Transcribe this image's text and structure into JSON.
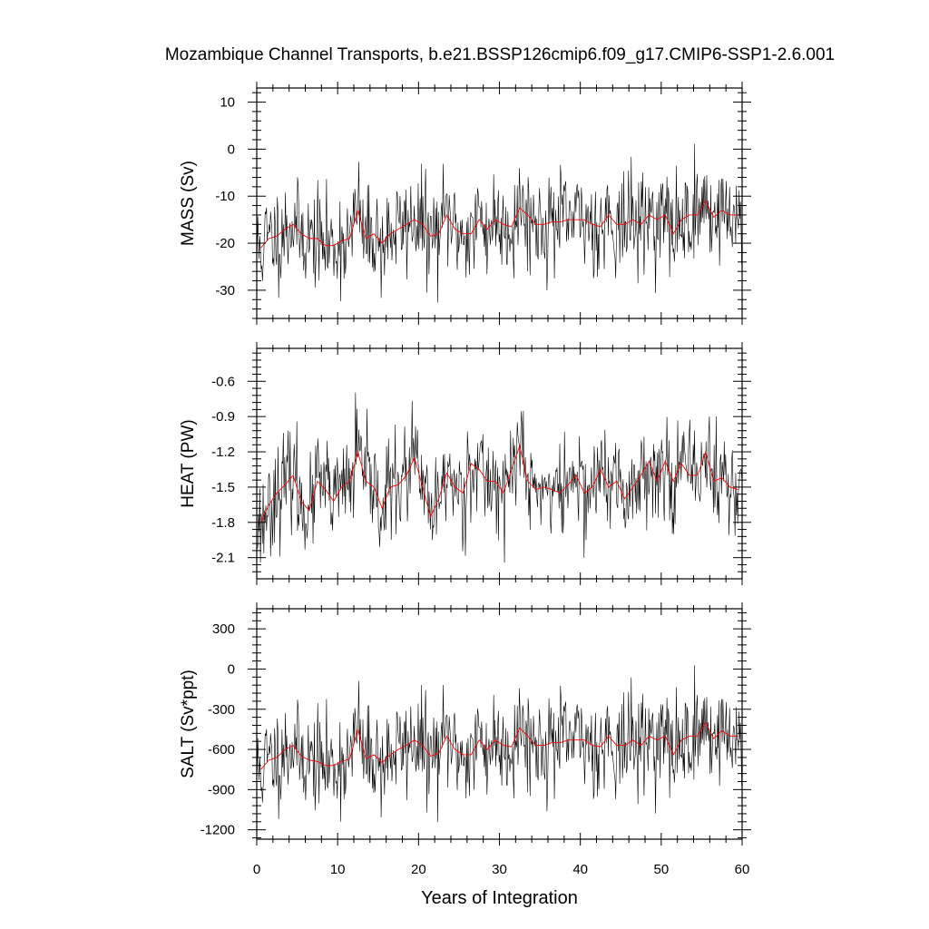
{
  "title": "Mozambique Channel Transports, b.e21.BSSP126cmip6.f09_g17.CMIP6-SSP1-2.6.001",
  "colors": {
    "monthly": "#000000",
    "annual": "#ff0000",
    "frame": "#000000"
  },
  "chart_data": [
    {
      "type": "line",
      "panel": "mass",
      "ylabel": "MASS (Sv)",
      "xlabel": "",
      "xlim": [
        0,
        60
      ],
      "ylim": [
        -36,
        13
      ],
      "yticks": [
        10,
        0,
        -10,
        -20,
        -30
      ],
      "ytick_labels": [
        "10",
        "0",
        "-10",
        "-20",
        "-30"
      ],
      "annual_x": [
        0.5,
        1.5,
        2.5,
        3.5,
        4.5,
        5.5,
        6.5,
        7.5,
        8.5,
        9.5,
        10.5,
        11.5,
        12.5,
        13.5,
        14.5,
        15.5,
        16.5,
        17.5,
        18.5,
        19.5,
        20.5,
        21.5,
        22.5,
        23.5,
        24.5,
        25.5,
        26.5,
        27.5,
        28.5,
        29.5,
        30.5,
        31.5,
        32.5,
        33.5,
        34.5,
        35.5,
        36.5,
        37.5,
        38.5,
        39.5,
        40.5,
        41.5,
        42.5,
        43.5,
        44.5,
        45.5,
        46.5,
        47.5,
        48.5,
        49.5,
        50.5,
        51.5,
        52.5,
        53.5,
        54.5,
        55.5,
        56.5,
        57.5,
        58.5,
        59.5
      ],
      "annual_y": [
        -21,
        -19,
        -18.5,
        -17,
        -16,
        -18,
        -19,
        -19,
        -20.5,
        -20.5,
        -19.5,
        -19,
        -13,
        -19,
        -18,
        -20,
        -18,
        -17,
        -16,
        -15,
        -16,
        -18.5,
        -18,
        -14,
        -17,
        -18,
        -18,
        -15,
        -17,
        -15,
        -16,
        -16.5,
        -12.5,
        -14,
        -16,
        -16,
        -15.5,
        -15.5,
        -15,
        -15,
        -15,
        -16,
        -16.5,
        -14,
        -16,
        -16,
        -15,
        -16,
        -14,
        -15,
        -14,
        -18,
        -15,
        -14,
        -14,
        -11,
        -14.5,
        -13,
        -14,
        -14
      ],
      "monthly_seed": 11,
      "monthly_sd": 5.2
    },
    {
      "type": "line",
      "panel": "heat",
      "ylabel": "HEAT (PW)",
      "xlabel": "",
      "xlim": [
        0,
        60
      ],
      "ylim": [
        -2.28,
        -0.32
      ],
      "yticks": [
        -0.6,
        -0.9,
        -1.2,
        -1.5,
        -1.8,
        -2.1
      ],
      "ytick_labels": [
        "-0.6",
        "-0.9",
        "-1.2",
        "-1.5",
        "-1.8",
        "-2.1"
      ],
      "annual_x": [
        0.5,
        1.5,
        2.5,
        3.5,
        4.5,
        5.5,
        6.5,
        7.5,
        8.5,
        9.5,
        10.5,
        11.5,
        12.5,
        13.5,
        14.5,
        15.5,
        16.5,
        17.5,
        18.5,
        19.5,
        20.5,
        21.5,
        22.5,
        23.5,
        24.5,
        25.5,
        26.5,
        27.5,
        28.5,
        29.5,
        30.5,
        31.5,
        32.5,
        33.5,
        34.5,
        35.5,
        36.5,
        37.5,
        38.5,
        39.5,
        40.5,
        41.5,
        42.5,
        43.5,
        44.5,
        45.5,
        46.5,
        47.5,
        48.5,
        49.5,
        50.5,
        51.5,
        52.5,
        53.5,
        54.5,
        55.5,
        56.5,
        57.5,
        58.5,
        59.5
      ],
      "annual_y": [
        -1.8,
        -1.65,
        -1.55,
        -1.48,
        -1.4,
        -1.62,
        -1.7,
        -1.45,
        -1.52,
        -1.62,
        -1.5,
        -1.45,
        -1.2,
        -1.45,
        -1.5,
        -1.68,
        -1.5,
        -1.48,
        -1.4,
        -1.25,
        -1.5,
        -1.75,
        -1.6,
        -1.38,
        -1.5,
        -1.55,
        -1.3,
        -1.35,
        -1.45,
        -1.45,
        -1.55,
        -1.35,
        -1.15,
        -1.45,
        -1.52,
        -1.5,
        -1.52,
        -1.55,
        -1.48,
        -1.4,
        -1.55,
        -1.5,
        -1.35,
        -1.5,
        -1.45,
        -1.6,
        -1.5,
        -1.4,
        -1.28,
        -1.45,
        -1.28,
        -1.45,
        -1.3,
        -1.4,
        -1.4,
        -1.2,
        -1.45,
        -1.42,
        -1.5,
        -1.52
      ],
      "monthly_seed": 23,
      "monthly_sd": 0.2
    },
    {
      "type": "line",
      "panel": "salt",
      "ylabel": "SALT (Sv*ppt)",
      "xlabel": "Years of Integration",
      "xlim": [
        0,
        60
      ],
      "ylim": [
        -1270,
        450
      ],
      "yticks": [
        300,
        0,
        -300,
        -600,
        -900,
        -1200
      ],
      "ytick_labels": [
        "300",
        "0",
        "-300",
        "-600",
        "-900",
        "-1200"
      ],
      "xticks": [
        0,
        10,
        20,
        30,
        40,
        50,
        60
      ],
      "xtick_labels": [
        "0",
        "10",
        "20",
        "30",
        "40",
        "50",
        "60"
      ],
      "annual_x": [
        0.5,
        1.5,
        2.5,
        3.5,
        4.5,
        5.5,
        6.5,
        7.5,
        8.5,
        9.5,
        10.5,
        11.5,
        12.5,
        13.5,
        14.5,
        15.5,
        16.5,
        17.5,
        18.5,
        19.5,
        20.5,
        21.5,
        22.5,
        23.5,
        24.5,
        25.5,
        26.5,
        27.5,
        28.5,
        29.5,
        30.5,
        31.5,
        32.5,
        33.5,
        34.5,
        35.5,
        36.5,
        37.5,
        38.5,
        39.5,
        40.5,
        41.5,
        42.5,
        43.5,
        44.5,
        45.5,
        46.5,
        47.5,
        48.5,
        49.5,
        50.5,
        51.5,
        52.5,
        53.5,
        54.5,
        55.5,
        56.5,
        57.5,
        58.5,
        59.5
      ],
      "annual_y": [
        -750,
        -680,
        -660,
        -600,
        -570,
        -650,
        -680,
        -690,
        -720,
        -720,
        -690,
        -670,
        -450,
        -670,
        -640,
        -700,
        -640,
        -600,
        -570,
        -530,
        -570,
        -650,
        -630,
        -500,
        -600,
        -640,
        -640,
        -530,
        -600,
        -530,
        -570,
        -580,
        -440,
        -500,
        -570,
        -570,
        -550,
        -550,
        -530,
        -530,
        -530,
        -570,
        -580,
        -500,
        -570,
        -570,
        -530,
        -570,
        -500,
        -530,
        -500,
        -640,
        -530,
        -500,
        -500,
        -400,
        -520,
        -460,
        -500,
        -500
      ],
      "monthly_seed": 11,
      "monthly_sd": 182
    }
  ]
}
